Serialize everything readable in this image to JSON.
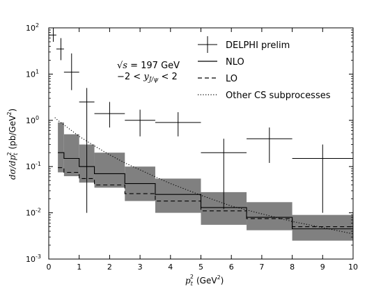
{
  "chart_data": {
    "type": "line",
    "xlabel_main": "p",
    "xlabel_sub": "t",
    "xlabel_sup": "2",
    "xlabel_unit": "(GeV",
    "xlabel_unit_sup": "2",
    "xlabel_unit_end": ")",
    "ylabel_math": "dσ/dp",
    "ylabel_math_sub": "t",
    "ylabel_math_sup": "2",
    "ylabel_unit": "(pb/GeV",
    "ylabel_unit_sup": "2",
    "ylabel_unit_end": ")",
    "xlim": [
      0,
      10
    ],
    "ylim": [
      0.001,
      100
    ],
    "yscale": "log",
    "x_ticks": [
      0,
      1,
      2,
      3,
      4,
      5,
      6,
      7,
      8,
      9,
      10
    ],
    "x_tick_labels": [
      "0",
      "1",
      "2",
      "3",
      "4",
      "5",
      "6",
      "7",
      "8",
      "9",
      "10"
    ],
    "y_ticks": [
      {
        "value": 100,
        "base": "10",
        "exp": "2"
      },
      {
        "value": 10,
        "base": "10",
        "exp": "1"
      },
      {
        "value": 1,
        "base": "10",
        "exp": "0"
      },
      {
        "value": 0.1,
        "base": "10",
        "exp": "-1"
      },
      {
        "value": 0.01,
        "base": "10",
        "exp": "-2"
      },
      {
        "value": 0.001,
        "base": "10",
        "exp": "-3"
      }
    ],
    "annotation_line1_math": "√s",
    "annotation_line1_rest": " = 197 GeV",
    "annotation_line2_left": "−2 < ",
    "annotation_line2_var": "y",
    "annotation_line2_sub": "J/ψ",
    "annotation_line2_right": " < 2",
    "legend_position": "top-right",
    "legend": [
      {
        "label": "DELPHI prelim",
        "style": "errorbar-cross"
      },
      {
        "label": "NLO",
        "style": "solid"
      },
      {
        "label": "LO",
        "style": "dashed"
      },
      {
        "label": "Other CS subprocesses",
        "style": "dotted"
      }
    ],
    "band_color": "#808080",
    "data_points": [
      {
        "x": 0.15,
        "xerr": [
          0.0,
          0.25
        ],
        "y": 70,
        "yerr": [
          50,
          110
        ]
      },
      {
        "x": 0.4,
        "xerr": [
          0.25,
          0.5
        ],
        "y": 35,
        "yerr": [
          20,
          60
        ]
      },
      {
        "x": 0.75,
        "xerr": [
          0.5,
          1.0
        ],
        "y": 11,
        "yerr": [
          4.5,
          28
        ]
      },
      {
        "x": 1.25,
        "xerr": [
          1.0,
          1.5
        ],
        "y": 2.5,
        "yerr": [
          0.01,
          5
        ]
      },
      {
        "x": 2.0,
        "xerr": [
          1.5,
          2.5
        ],
        "y": 1.4,
        "yerr": [
          0.7,
          2.5
        ]
      },
      {
        "x": 3.0,
        "xerr": [
          2.5,
          3.5
        ],
        "y": 1.0,
        "yerr": [
          0.45,
          1.7
        ]
      },
      {
        "x": 4.25,
        "xerr": [
          3.5,
          5.0
        ],
        "y": 0.9,
        "yerr": [
          0.45,
          1.5
        ]
      },
      {
        "x": 5.75,
        "xerr": [
          5.0,
          6.5
        ],
        "y": 0.2,
        "yerr": [
          0.012,
          0.4
        ]
      },
      {
        "x": 7.25,
        "xerr": [
          6.5,
          8.0
        ],
        "y": 0.4,
        "yerr": [
          0.12,
          0.7
        ]
      },
      {
        "x": 9.0,
        "xerr": [
          8.0,
          10.0
        ],
        "y": 0.15,
        "yerr": [
          0.01,
          0.3
        ]
      }
    ],
    "bins": [
      0.3,
      0.5,
      1.0,
      1.5,
      2.5,
      3.5,
      5.0,
      6.5,
      8.0,
      10.0
    ],
    "band_low": [
      0.075,
      0.062,
      0.045,
      0.035,
      0.018,
      0.01,
      0.0055,
      0.0042,
      0.0025
    ],
    "band_high": [
      0.9,
      0.5,
      0.3,
      0.2,
      0.1,
      0.055,
      0.028,
      0.017,
      0.009
    ],
    "nlo": [
      0.2,
      0.15,
      0.1,
      0.07,
      0.043,
      0.025,
      0.013,
      0.008,
      0.0045
    ],
    "lo": [
      0.095,
      0.075,
      0.055,
      0.04,
      0.026,
      0.018,
      0.011,
      0.0075,
      0.005
    ],
    "other_cs": {
      "x": [
        0.2,
        0.3,
        0.5,
        0.75,
        1.0,
        1.5,
        2.0,
        2.5,
        3.0,
        3.5,
        4.0,
        5.0,
        6.0,
        7.0,
        8.0,
        9.0,
        10.0
      ],
      "y": [
        1.15,
        1.0,
        0.8,
        0.6,
        0.45,
        0.28,
        0.18,
        0.12,
        0.085,
        0.06,
        0.043,
        0.024,
        0.014,
        0.0095,
        0.0065,
        0.0048,
        0.0035
      ]
    }
  }
}
